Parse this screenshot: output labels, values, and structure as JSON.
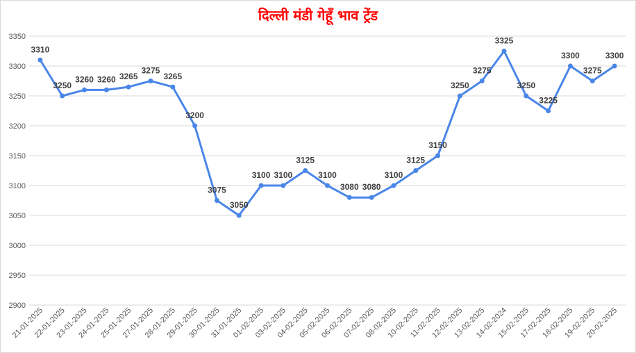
{
  "chart_data": {
    "type": "line",
    "title": "दिल्ली मंडी गेहूँ भाव ट्रेंड",
    "xlabel": "",
    "ylabel": "",
    "ylim": [
      2900,
      3350
    ],
    "yticks": [
      2900,
      2950,
      3000,
      3050,
      3100,
      3150,
      3200,
      3250,
      3300,
      3350
    ],
    "grid": true,
    "legend": "none",
    "line_color": "#4a86e8",
    "categories": [
      "21-01-2025",
      "22-01-2025",
      "23-01-2025",
      "24-01-2025",
      "25-01-2025",
      "27-01-2025",
      "28-01-2025",
      "29-01-2025",
      "30-01-2025",
      "31-01-2025",
      "01-02-2025",
      "03-02-2025",
      "04-02-2025",
      "05-02-2025",
      "06-02-2025",
      "07-02-2025",
      "08-02-2025",
      "10-02-2025",
      "11-02-2025",
      "12-02-2025",
      "13-02-2025",
      "14-02-2024",
      "15-02-2025",
      "17-02-2025",
      "18-02-2025",
      "19-02-2025",
      "20-02-2025"
    ],
    "values": [
      3310,
      3250,
      3260,
      3260,
      3265,
      3275,
      3265,
      3200,
      3075,
      3050,
      3100,
      3100,
      3125,
      3100,
      3080,
      3080,
      3100,
      3125,
      3150,
      3250,
      3275,
      3325,
      3250,
      3225,
      3300,
      3275,
      3300
    ]
  }
}
